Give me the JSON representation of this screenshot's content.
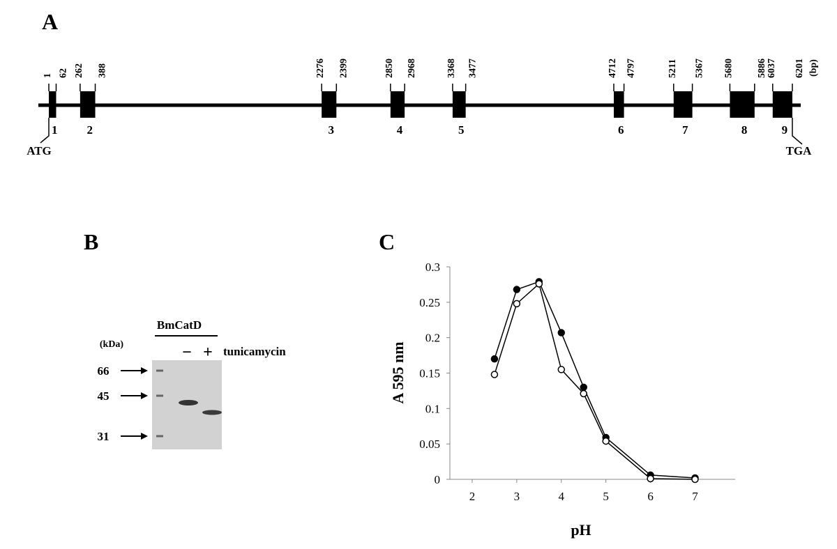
{
  "gene": {
    "label": "A",
    "unit": "(bp)",
    "start_codon": "ATG",
    "stop_codon": "TGA",
    "exons": [
      {
        "number": "1",
        "start": 1,
        "end": 62
      },
      {
        "number": "2",
        "start": 262,
        "end": 388
      },
      {
        "number": "3",
        "start": 2276,
        "end": 2399
      },
      {
        "number": "4",
        "start": 2850,
        "end": 2968
      },
      {
        "number": "5",
        "start": 3368,
        "end": 3477
      },
      {
        "number": "6",
        "start": 4712,
        "end": 4797
      },
      {
        "number": "7",
        "start": 5211,
        "end": 5367
      },
      {
        "number": "8",
        "start": 5680,
        "end": 5886
      },
      {
        "number": "9",
        "start": 6037,
        "end": 6201
      }
    ]
  },
  "gel": {
    "label": "B",
    "lane_header": "BmCatD",
    "unit": "(kDa)",
    "markers": [
      66,
      45,
      31
    ],
    "minus": "−",
    "plus": "+",
    "treatment": "tunicamycin"
  },
  "chart_data": {
    "type": "line",
    "panel_label": "C",
    "xlabel": "pH",
    "ylabel": "A 595 nm",
    "x": [
      2.5,
      3,
      3.5,
      4,
      4.5,
      5,
      6,
      7
    ],
    "series": [
      {
        "color": "#000000",
        "marker_fill": "#000000",
        "values": [
          0.17,
          0.268,
          0.279,
          0.207,
          0.13,
          0.059,
          0.006,
          0.002
        ]
      },
      {
        "color": "#000000",
        "marker_fill": "#ffffff",
        "values": [
          0.148,
          0.248,
          0.276,
          0.155,
          0.121,
          0.054,
          0.001,
          0.0
        ]
      }
    ],
    "xlim": [
      1.5,
      7.9
    ],
    "ylim": [
      0,
      0.3
    ],
    "xticks": [
      2,
      3,
      4,
      5,
      6,
      7
    ],
    "yticks": [
      0,
      0.05,
      0.1,
      0.15,
      0.2,
      0.25,
      0.3
    ]
  }
}
